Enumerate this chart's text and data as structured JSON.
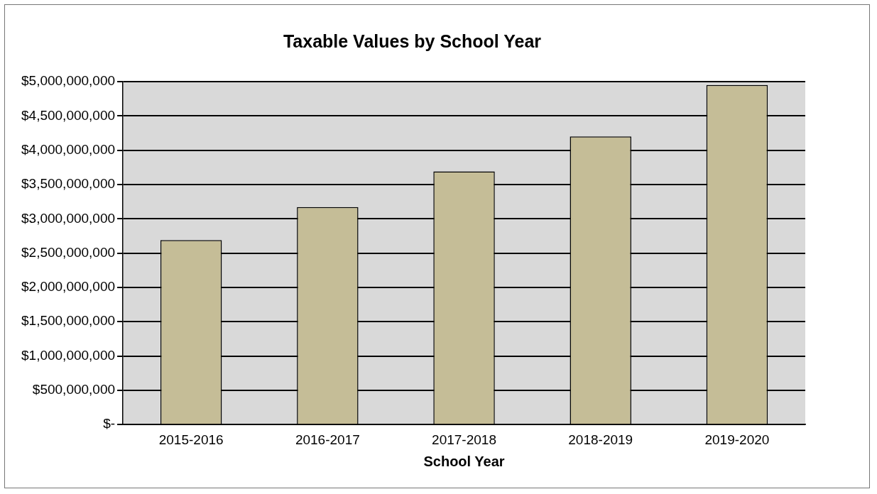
{
  "chart_data": {
    "type": "bar",
    "title": "Taxable Values by School Year",
    "xlabel": "School Year",
    "categories": [
      "2015-2016",
      "2016-2017",
      "2017-2018",
      "2018-2019",
      "2019-2020"
    ],
    "values": [
      2690000000,
      3170000000,
      3690000000,
      4200000000,
      4950000000
    ],
    "color": "#c5bd97",
    "ylim": [
      0,
      5000000000
    ],
    "yticks": [
      {
        "value": 0,
        "label": "$-"
      },
      {
        "value": 500000000,
        "label": "$500,000,000"
      },
      {
        "value": 1000000000,
        "label": "$1,000,000,000"
      },
      {
        "value": 1500000000,
        "label": "$1,500,000,000"
      },
      {
        "value": 2000000000,
        "label": "$2,000,000,000"
      },
      {
        "value": 2500000000,
        "label": "$2,500,000,000"
      },
      {
        "value": 3000000000,
        "label": "$3,000,000,000"
      },
      {
        "value": 3500000000,
        "label": "$3,500,000,000"
      },
      {
        "value": 4000000000,
        "label": "$4,000,000,000"
      },
      {
        "value": 4500000000,
        "label": "$4,500,000,000"
      },
      {
        "value": 5000000000,
        "label": "$5,000,000,000"
      }
    ],
    "grid": "y",
    "legend": false
  }
}
